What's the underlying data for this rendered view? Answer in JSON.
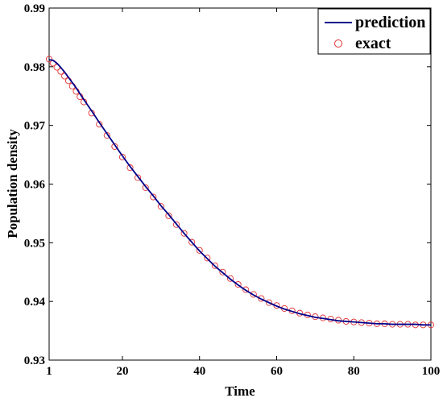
{
  "chart_data": {
    "type": "line",
    "xlabel": "Time",
    "ylabel": "Population density",
    "xlim": [
      1,
      100
    ],
    "ylim": [
      0.93,
      0.99
    ],
    "xticks": [
      1,
      20,
      40,
      60,
      80,
      100
    ],
    "yticks": [
      0.93,
      0.94,
      0.95,
      0.96,
      0.97,
      0.98,
      0.99
    ],
    "legend_position": "top-right",
    "series": [
      {
        "name": "prediction",
        "style": "line",
        "color": "#00008B",
        "x": [
          1,
          2,
          3,
          4,
          5,
          6,
          7,
          8,
          9,
          10,
          12,
          14,
          16,
          18,
          20,
          22,
          24,
          26,
          28,
          30,
          32,
          34,
          36,
          38,
          40,
          42,
          44,
          46,
          48,
          50,
          52,
          54,
          56,
          58,
          60,
          62,
          64,
          66,
          68,
          70,
          72,
          74,
          76,
          78,
          80,
          82,
          84,
          86,
          88,
          90,
          92,
          94,
          96,
          98,
          100
        ],
        "y": [
          0.9812,
          0.9811,
          0.9806,
          0.9799,
          0.9791,
          0.9782,
          0.9773,
          0.9764,
          0.9754,
          0.9744,
          0.9725,
          0.9705,
          0.9686,
          0.9667,
          0.9648,
          0.963,
          0.9613,
          0.9596,
          0.958,
          0.9563,
          0.9548,
          0.9532,
          0.9516,
          0.9501,
          0.9486,
          0.9473,
          0.946,
          0.9449,
          0.9438,
          0.9428,
          0.9419,
          0.9411,
          0.9404,
          0.9398,
          0.9392,
          0.9387,
          0.9383,
          0.9379,
          0.9376,
          0.9373,
          0.9371,
          0.9369,
          0.9367,
          0.9366,
          0.9365,
          0.9364,
          0.9363,
          0.9362,
          0.9362,
          0.9361,
          0.9361,
          0.9361,
          0.9361,
          0.936,
          0.936
        ]
      },
      {
        "name": "exact",
        "style": "markers",
        "color": "#E03030",
        "x": [
          1,
          2,
          3,
          4,
          5,
          6,
          7,
          8,
          9,
          10,
          12,
          14,
          16,
          18,
          20,
          22,
          24,
          26,
          28,
          30,
          32,
          34,
          36,
          38,
          40,
          42,
          44,
          46,
          48,
          50,
          52,
          54,
          56,
          58,
          60,
          62,
          64,
          66,
          68,
          70,
          72,
          74,
          76,
          78,
          80,
          82,
          84,
          86,
          88,
          90,
          92,
          94,
          96,
          98,
          100
        ],
        "y": [
          0.9813,
          0.9806,
          0.9799,
          0.9792,
          0.9784,
          0.9776,
          0.9767,
          0.9758,
          0.9749,
          0.974,
          0.9721,
          0.9702,
          0.9683,
          0.9664,
          0.9646,
          0.9628,
          0.9611,
          0.9594,
          0.9578,
          0.9562,
          0.9546,
          0.9531,
          0.9516,
          0.9501,
          0.9487,
          0.9474,
          0.9461,
          0.945,
          0.9439,
          0.9429,
          0.942,
          0.9412,
          0.9405,
          0.9398,
          0.9393,
          0.9388,
          0.9384,
          0.938,
          0.9377,
          0.9374,
          0.9372,
          0.937,
          0.9368,
          0.9366,
          0.9365,
          0.9364,
          0.9363,
          0.9362,
          0.9362,
          0.9361,
          0.9361,
          0.9361,
          0.936,
          0.936,
          0.936
        ]
      }
    ]
  }
}
